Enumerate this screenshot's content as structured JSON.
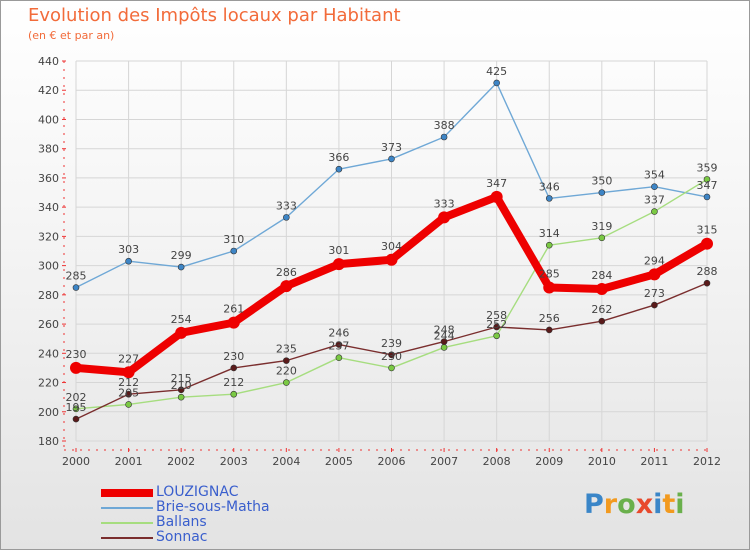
{
  "title": "Evolution des Impôts locaux par Habitant",
  "subtitle": "(en € et par an)",
  "logo_text": "Proxiti",
  "chart_data": {
    "type": "line",
    "title": "Evolution des Impôts locaux par Habitant",
    "subtitle": "(en € et par an)",
    "xlabel": "",
    "ylabel": "",
    "ylim": [
      180,
      440
    ],
    "yticks": [
      180,
      200,
      220,
      240,
      260,
      280,
      300,
      320,
      340,
      360,
      380,
      400,
      420,
      440
    ],
    "x": [
      "2000",
      "2001",
      "2002",
      "2003",
      "2004",
      "2005",
      "2006",
      "2007",
      "2008",
      "2009",
      "2010",
      "2011",
      "2012"
    ],
    "grid": true,
    "legend_position": "bottom-left",
    "series": [
      {
        "name": "LOUZIGNAC",
        "color": "#ee0000",
        "marker_color": "#ee0000",
        "values": [
          230,
          227,
          254,
          261,
          286,
          301,
          304,
          333,
          347,
          285,
          284,
          294,
          315
        ],
        "labels": [
          "230",
          "227",
          "254",
          "261",
          "286",
          "301",
          "304",
          "333",
          "347",
          "285",
          "284",
          "294",
          "315"
        ]
      },
      {
        "name": "Brie-sous-Matha",
        "color": "#6fa8d6",
        "marker_color": "#3d85c6",
        "values": [
          285,
          303,
          299,
          310,
          333,
          366,
          373,
          388,
          425,
          346,
          350,
          354,
          347
        ],
        "labels": [
          "285",
          "303",
          "299",
          "310",
          "333",
          "366",
          "373",
          "388",
          "425",
          "346",
          "350",
          "354",
          "347"
        ]
      },
      {
        "name": "Ballans",
        "color": "#a6dd7f",
        "marker_color": "#7ac943",
        "values": [
          202,
          205,
          210,
          212,
          220,
          237,
          230,
          244,
          252,
          314,
          319,
          337,
          359
        ],
        "labels": [
          "202",
          "205",
          "210",
          "212",
          "220",
          "237",
          "230",
          "244",
          "252",
          "314",
          "319",
          "337",
          "359"
        ]
      },
      {
        "name": "Sonnac",
        "color": "#7a2e2e",
        "marker_color": "#5a1a1a",
        "values": [
          195,
          212,
          215,
          230,
          235,
          246,
          239,
          248,
          258,
          256,
          262,
          273,
          288
        ],
        "labels": [
          "195",
          "212",
          "215",
          "230",
          "235",
          "246",
          "239",
          "248",
          "258",
          "256",
          "262",
          "273",
          "288"
        ]
      }
    ]
  }
}
